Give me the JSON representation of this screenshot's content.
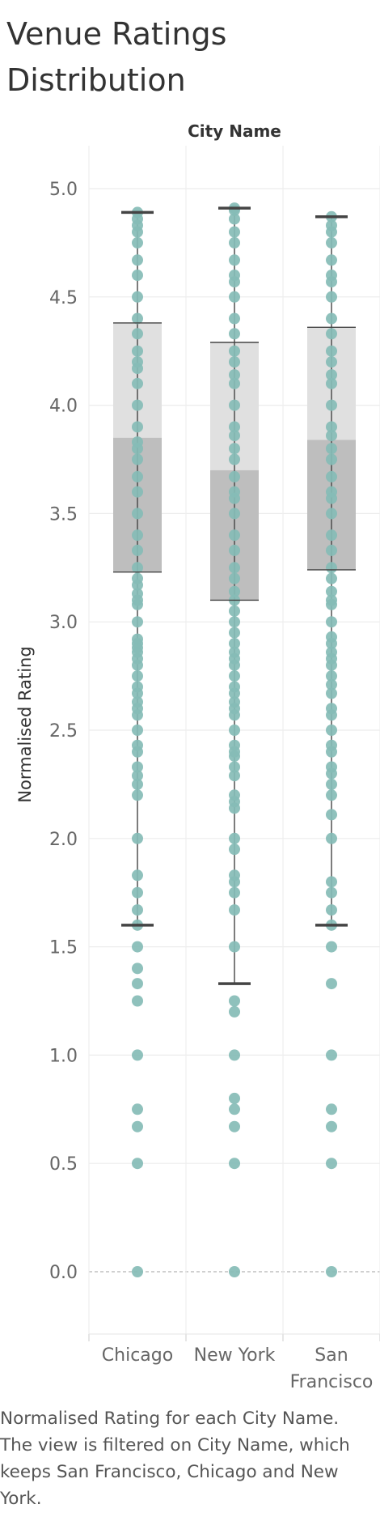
{
  "title": "Venue Ratings Distribution",
  "caption": "Normalised Rating for each City Name. The view is filtered on City Name, which keeps San Francisco, Chicago and New York.",
  "colors": {
    "dot": "#86BCB6",
    "box_upper": "#e0e0e0",
    "box_lower": "#bebebe",
    "whisker": "#444444",
    "gridline": "#ececec",
    "zero_line": "#b5b5b5"
  },
  "chart_data": {
    "type": "box",
    "column_header": "City Name",
    "ylabel": "Normalised Rating",
    "ylim": [
      -0.28,
      5.08
    ],
    "yticks": [
      "0.0",
      "0.5",
      "1.0",
      "1.5",
      "2.0",
      "2.5",
      "3.0",
      "3.5",
      "4.0",
      "4.5",
      "5.0"
    ],
    "grid": true,
    "categories": [
      {
        "name": "Chicago",
        "label_lines": [
          "Chicago"
        ],
        "whisker_low": 1.6,
        "q1": 3.23,
        "median": 3.85,
        "q3": 4.38,
        "whisker_high": 4.89,
        "points": [
          0,
          0.5,
          0.67,
          0.75,
          1.0,
          1.25,
          1.33,
          1.4,
          1.5,
          1.6,
          1.67,
          1.75,
          1.83,
          2.0,
          2.2,
          2.25,
          2.29,
          2.33,
          2.4,
          2.43,
          2.5,
          2.57,
          2.6,
          2.63,
          2.67,
          2.7,
          2.75,
          2.8,
          2.83,
          2.86,
          2.88,
          2.9,
          2.92,
          3.0,
          3.08,
          3.1,
          3.13,
          3.17,
          3.2,
          3.25,
          3.33,
          3.4,
          3.5,
          3.6,
          3.67,
          3.75,
          3.8,
          3.83,
          3.9,
          4.0,
          4.1,
          4.17,
          4.2,
          4.25,
          4.33,
          4.4,
          4.5,
          4.6,
          4.67,
          4.75,
          4.8,
          4.83,
          4.86,
          4.89
        ]
      },
      {
        "name": "New York",
        "label_lines": [
          "New York"
        ],
        "whisker_low": 1.33,
        "q1": 3.1,
        "median": 3.7,
        "q3": 4.29,
        "whisker_high": 4.91,
        "points": [
          0,
          0.5,
          0.67,
          0.75,
          0.8,
          1.0,
          1.2,
          1.25,
          1.5,
          1.67,
          1.75,
          1.8,
          1.83,
          1.95,
          2.0,
          2.14,
          2.17,
          2.2,
          2.29,
          2.33,
          2.38,
          2.4,
          2.43,
          2.5,
          2.57,
          2.6,
          2.63,
          2.67,
          2.7,
          2.75,
          2.8,
          2.83,
          2.86,
          2.9,
          2.95,
          3.0,
          3.05,
          3.1,
          3.14,
          3.2,
          3.25,
          3.33,
          3.4,
          3.5,
          3.57,
          3.6,
          3.67,
          3.75,
          3.8,
          3.86,
          3.9,
          4.0,
          4.1,
          4.14,
          4.2,
          4.25,
          4.33,
          4.4,
          4.5,
          4.57,
          4.6,
          4.67,
          4.75,
          4.8,
          4.86,
          4.9,
          4.91
        ]
      },
      {
        "name": "San Francisco",
        "label_lines": [
          "San",
          "Francisco"
        ],
        "whisker_low": 1.6,
        "q1": 3.24,
        "median": 3.84,
        "q3": 4.36,
        "whisker_high": 4.87,
        "points": [
          0,
          0.5,
          0.67,
          0.75,
          1.0,
          1.33,
          1.5,
          1.6,
          1.67,
          1.75,
          1.8,
          2.0,
          2.11,
          2.2,
          2.25,
          2.3,
          2.33,
          2.4,
          2.43,
          2.5,
          2.57,
          2.6,
          2.67,
          2.71,
          2.75,
          2.8,
          2.83,
          2.86,
          2.9,
          2.93,
          3.0,
          3.08,
          3.1,
          3.14,
          3.2,
          3.25,
          3.33,
          3.4,
          3.5,
          3.57,
          3.6,
          3.67,
          3.75,
          3.8,
          3.86,
          3.9,
          4.0,
          4.1,
          4.14,
          4.2,
          4.25,
          4.33,
          4.4,
          4.5,
          4.57,
          4.6,
          4.67,
          4.75,
          4.8,
          4.83,
          4.87
        ]
      }
    ]
  }
}
